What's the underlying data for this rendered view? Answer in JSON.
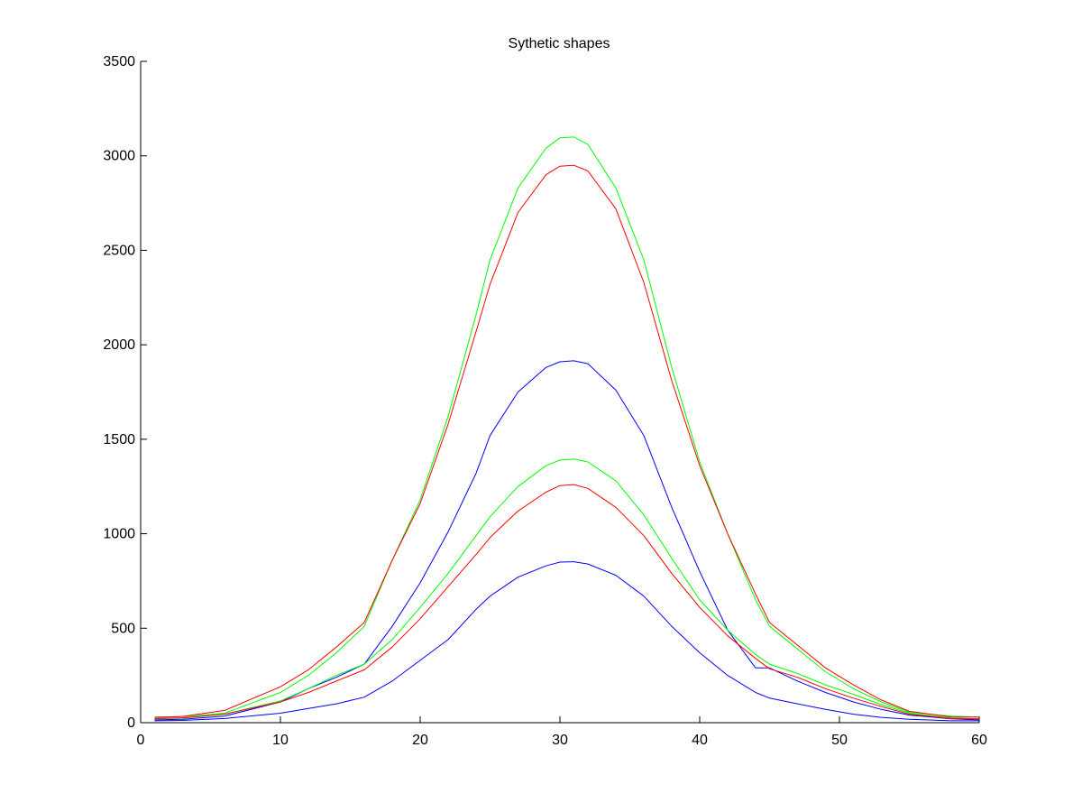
{
  "chart_data": {
    "type": "line",
    "title": "Sythetic shapes",
    "xlabel": "",
    "ylabel": "",
    "xlim": [
      0,
      60
    ],
    "ylim": [
      0,
      3500
    ],
    "xticks": [
      0,
      10,
      20,
      30,
      40,
      50,
      60
    ],
    "yticks": [
      0,
      500,
      1000,
      1500,
      2000,
      2500,
      3000,
      3500
    ],
    "grid": false,
    "x": [
      1,
      3,
      6,
      10,
      12,
      14,
      16,
      18,
      20,
      22,
      24,
      25,
      27,
      29,
      30,
      31,
      32,
      34,
      36,
      38,
      40,
      42,
      44,
      45,
      47,
      49,
      51,
      53,
      55,
      58,
      60
    ],
    "series": [
      {
        "color": "#00ff00",
        "values": [
          30,
          32,
          50,
          160,
          250,
          370,
          510,
          860,
          1180,
          1620,
          2160,
          2450,
          2830,
          3040,
          3095,
          3100,
          3060,
          2830,
          2450,
          1880,
          1380,
          1000,
          650,
          510,
          390,
          270,
          180,
          110,
          55,
          35,
          30
        ]
      },
      {
        "color": "#ff0000",
        "values": [
          28,
          33,
          65,
          190,
          280,
          400,
          530,
          860,
          1160,
          1580,
          2070,
          2320,
          2700,
          2900,
          2945,
          2950,
          2920,
          2720,
          2330,
          1810,
          1360,
          1000,
          680,
          530,
          410,
          290,
          200,
          120,
          60,
          30,
          30
        ]
      },
      {
        "color": "#0000ff",
        "values": [
          15,
          18,
          35,
          110,
          180,
          240,
          310,
          510,
          740,
          1010,
          1320,
          1520,
          1750,
          1880,
          1910,
          1915,
          1900,
          1760,
          1520,
          1140,
          800,
          490,
          290,
          290,
          220,
          160,
          110,
          70,
          40,
          20,
          15
        ]
      },
      {
        "color": "#00ff00",
        "values": [
          20,
          24,
          45,
          115,
          180,
          250,
          310,
          440,
          610,
          790,
          990,
          1090,
          1250,
          1360,
          1390,
          1395,
          1380,
          1280,
          1100,
          870,
          650,
          490,
          360,
          310,
          260,
          200,
          150,
          95,
          50,
          25,
          20
        ]
      },
      {
        "color": "#ff0000",
        "values": [
          22,
          26,
          45,
          110,
          160,
          220,
          280,
          400,
          550,
          720,
          890,
          980,
          1120,
          1220,
          1255,
          1260,
          1240,
          1140,
          990,
          790,
          610,
          460,
          340,
          285,
          240,
          180,
          130,
          85,
          45,
          22,
          20
        ]
      },
      {
        "color": "#0000ff",
        "values": [
          10,
          12,
          22,
          50,
          75,
          100,
          135,
          220,
          330,
          440,
          600,
          670,
          770,
          830,
          850,
          852,
          840,
          780,
          670,
          510,
          370,
          250,
          160,
          130,
          100,
          70,
          45,
          28,
          18,
          10,
          10
        ]
      }
    ]
  }
}
